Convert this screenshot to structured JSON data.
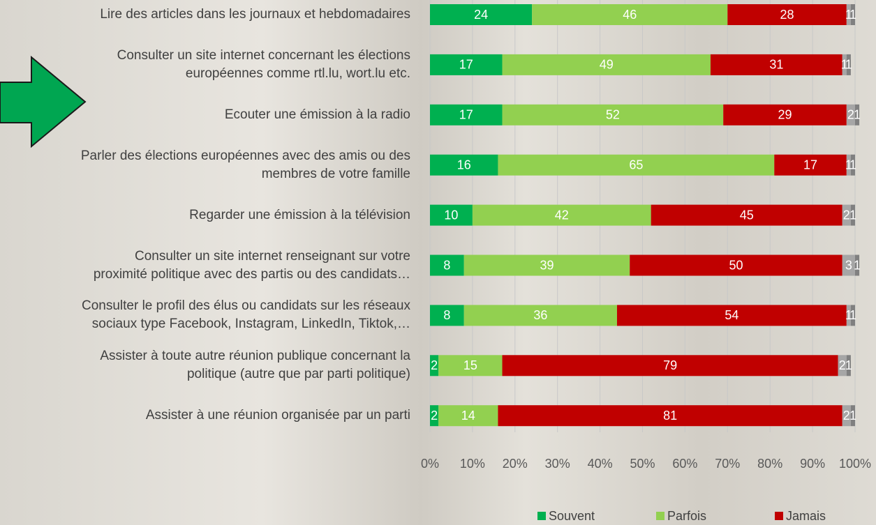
{
  "chart_data": {
    "type": "stacked-bar-horizontal",
    "categories": [
      "Lire des articles dans les journaux et hebdomadaires",
      "Consulter un site internet concernant les élections\neuropéennes comme rtl.lu, wort.lu etc.",
      "Ecouter une émission à la radio",
      "Parler des élections européennes avec des amis ou des\nmembres de votre famille",
      "Regarder une émission à la télévision",
      "Consulter un site internet renseignant sur votre\nproximité politique avec des partis ou des candidats…",
      "Consulter le profil des élus ou candidats sur les réseaux\nsociaux type Facebook, Instagram, LinkedIn, Tiktok,…",
      "Assister à toute autre réunion publique concernant la\npolitique (autre que par parti politique)",
      "Assister à une réunion organisée par un parti"
    ],
    "series": [
      {
        "name": "Souvent",
        "color": "#00b050",
        "values": [
          24,
          17,
          17,
          16,
          10,
          8,
          8,
          2,
          2
        ]
      },
      {
        "name": "Parfois",
        "color": "#92d050",
        "values": [
          46,
          49,
          52,
          65,
          42,
          39,
          36,
          15,
          14
        ]
      },
      {
        "name": "Jamais",
        "color": "#c00000",
        "values": [
          28,
          31,
          29,
          17,
          45,
          50,
          54,
          79,
          81
        ]
      },
      {
        "color": "#a6a6a6",
        "values": [
          1,
          1,
          2,
          1,
          2,
          3,
          1,
          2,
          2
        ]
      },
      {
        "color": "#808080",
        "values": [
          1,
          1,
          1,
          1,
          1,
          1,
          1,
          1,
          1
        ]
      }
    ],
    "xlim": [
      0,
      100
    ],
    "xticks": [
      {
        "value": 0,
        "label": "0%"
      },
      {
        "value": 10,
        "label": "10%"
      },
      {
        "value": 20,
        "label": "20%"
      },
      {
        "value": 30,
        "label": "30%"
      },
      {
        "value": 40,
        "label": "40%"
      },
      {
        "value": 50,
        "label": "50%"
      },
      {
        "value": 60,
        "label": "60%"
      },
      {
        "value": 70,
        "label": "70%"
      },
      {
        "value": 80,
        "label": "80%"
      },
      {
        "value": 90,
        "label": "90%"
      },
      {
        "value": 100,
        "label": "100%"
      }
    ],
    "grid": true,
    "legend": "bottom"
  }
}
